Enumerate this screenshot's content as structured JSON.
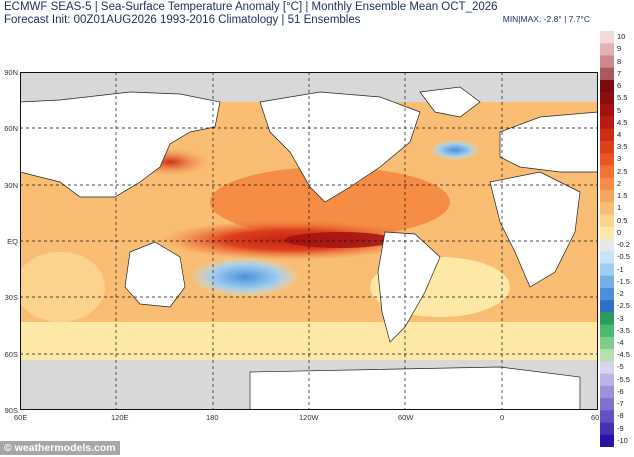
{
  "header": {
    "title": "ECMWF SEAS-5 | Sea-Surface Temperature Anomaly [°C] | Monthly Ensemble Mean OCT_2026",
    "subtitle": "Forecast Init: 00Z01AUG2026    1993-2016 Climatology | 51 Ensembles",
    "minmax": "MIN|MAX: -2.8° | 7.7°C"
  },
  "axes": {
    "lat_labels": [
      "90N",
      "60N",
      "30N",
      "EQ",
      "30S",
      "60S",
      "90S"
    ],
    "lon_labels": [
      "60E",
      "120E",
      "180",
      "120W",
      "60W",
      "0",
      "60"
    ]
  },
  "colorbar": {
    "labels": [
      "10",
      "9",
      "8",
      "7",
      "6",
      "5.5",
      "5",
      "4.5",
      "4",
      "3.5",
      "3",
      "2.5",
      "2",
      "1.5",
      "1",
      "0.5",
      "0",
      "-0.2",
      "-0.5",
      "-1",
      "-1.5",
      "-2",
      "-2.5",
      "-3",
      "-3.5",
      "-4",
      "-4.5",
      "-5",
      "-5.5",
      "-6",
      "-7",
      "-8",
      "-9",
      "-10"
    ],
    "colors": [
      "#f5d9da",
      "#e3b2b4",
      "#c98a8d",
      "#a85a5e",
      "#7a0b10",
      "#8e0d0d",
      "#a31212",
      "#b91b14",
      "#cc2c17",
      "#dd3f1c",
      "#e85626",
      "#f07333",
      "#f58d45",
      "#f7a65c",
      "#f9be74",
      "#fbd38d",
      "#fde8a6",
      "#e8e8e8",
      "#c6e4f6",
      "#9fcdef",
      "#74b0e5",
      "#4d8fd8",
      "#2f6fc8",
      "#2a9d5a",
      "#4cb86e",
      "#7fcd8c",
      "#b3e0b0",
      "#d9d3ef",
      "#bfb2e8",
      "#a08fdc",
      "#8270cf",
      "#6450c2",
      "#4731b3",
      "#2a13a3"
    ]
  },
  "footer": {
    "credit": "© weathermodels.com"
  }
}
